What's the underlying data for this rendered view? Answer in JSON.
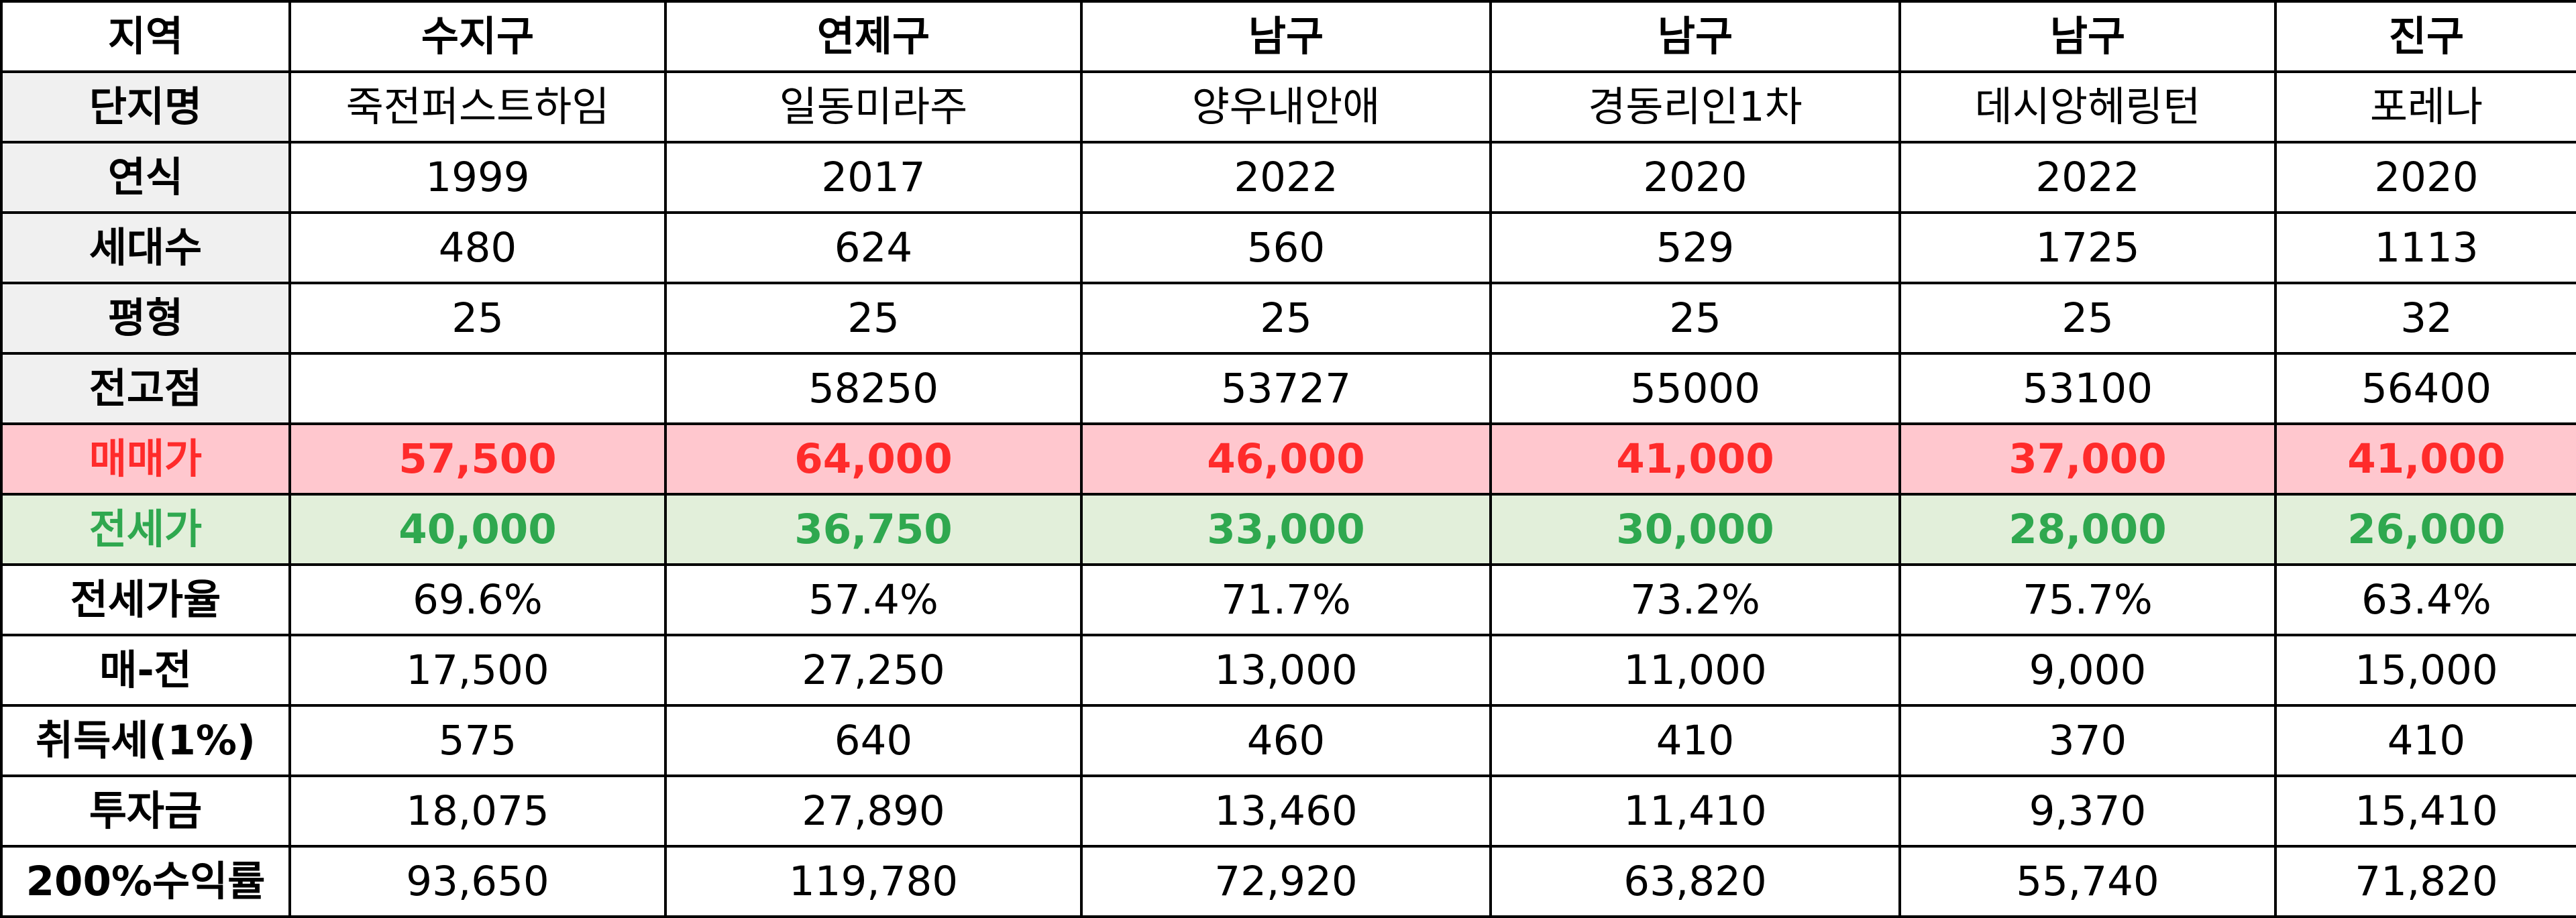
{
  "table": {
    "columns": [
      "지역",
      "수지구",
      "연제구",
      "남구",
      "남구",
      "남구",
      "진구"
    ],
    "rows": [
      {
        "label": "단지명",
        "values": [
          "죽전퍼스트하임",
          "일동미라주",
          "양우내안애",
          "경동리인1차",
          "데시앙헤링턴",
          "포레나"
        ]
      },
      {
        "label": "연식",
        "values": [
          "1999",
          "2017",
          "2022",
          "2020",
          "2022",
          "2020"
        ]
      },
      {
        "label": "세대수",
        "values": [
          "480",
          "624",
          "560",
          "529",
          "1725",
          "1113"
        ]
      },
      {
        "label": "평형",
        "values": [
          "25",
          "25",
          "25",
          "25",
          "25",
          "32"
        ]
      },
      {
        "label": "전고점",
        "values": [
          "",
          "58250",
          "53727",
          "55000",
          "53100",
          "56400"
        ]
      },
      {
        "label": "매매가",
        "values": [
          "57,500",
          "64,000",
          "46,000",
          "41,000",
          "37,000",
          "41,000"
        ]
      },
      {
        "label": "전세가",
        "values": [
          "40,000",
          "36,750",
          "33,000",
          "30,000",
          "28,000",
          "26,000"
        ]
      },
      {
        "label": "전세가율",
        "values": [
          "69.6%",
          "57.4%",
          "71.7%",
          "73.2%",
          "75.7%",
          "63.4%"
        ]
      },
      {
        "label": "매-전",
        "values": [
          "17,500",
          "27,250",
          "13,000",
          "11,000",
          "9,000",
          "15,000"
        ]
      },
      {
        "label": "취득세(1%)",
        "values": [
          "575",
          "640",
          "460",
          "410",
          "370",
          "410"
        ]
      },
      {
        "label": "투자금",
        "values": [
          "18,075",
          "27,890",
          "13,460",
          "11,410",
          "9,370",
          "15,410"
        ]
      },
      {
        "label": "200%수익률",
        "values": [
          "93,650",
          "119,780",
          "72,920",
          "63,820",
          "55,740",
          "71,820"
        ]
      }
    ]
  },
  "colors": {
    "sale_fill": "#ffc7ce",
    "sale_text": "#ff2b2b",
    "jeonse_fill": "#e2efda",
    "jeonse_text": "#2fa84f",
    "label_fill": "#f0f0f0"
  }
}
